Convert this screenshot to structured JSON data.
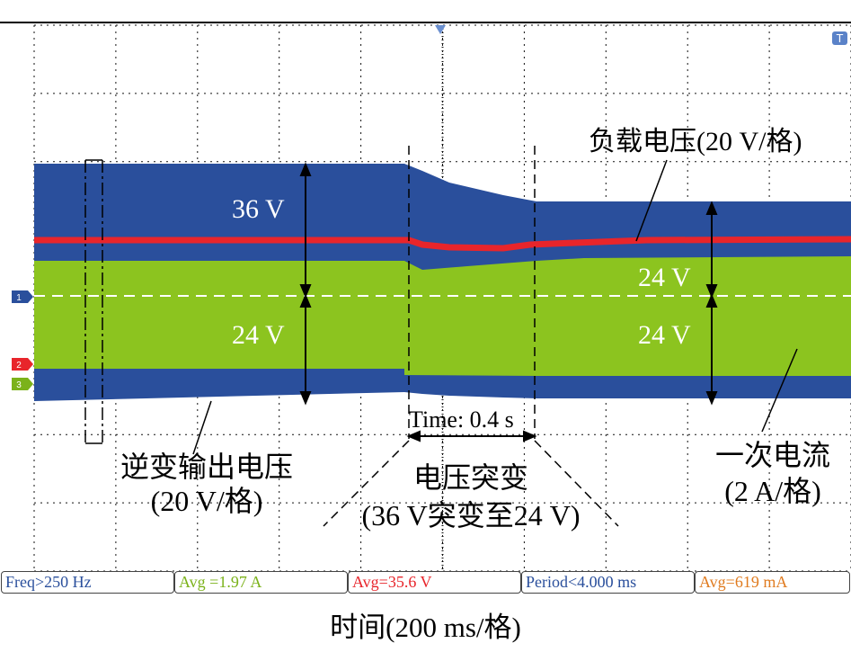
{
  "colors": {
    "blue": "#2a4f9c",
    "red": "#e8252b",
    "green": "#8cc41f",
    "ch4": "#e07b1f",
    "grid": "#9a9a9a",
    "divider_line": "#ffffff"
  },
  "scope": {
    "grid": true,
    "divisions_x": 10,
    "divisions_y": 8,
    "trigger_marker": "T",
    "channel_markers": [
      "1",
      "2",
      "3"
    ]
  },
  "annotations": {
    "load_voltage": "负载电压(20 V/格)",
    "v36": "36 V",
    "v24_left": "24 V",
    "v24_right_top": "24 V",
    "v24_right_bottom": "24 V",
    "time_label": "Time: 0.4 s",
    "inverter_line1": "逆变输出电压",
    "inverter_line2": "(20 V/格)",
    "step_line1": "电压突变",
    "step_line2": "(36 V突变至24 V)",
    "primary_line1": "一次电流",
    "primary_line2": "(2 A/格)"
  },
  "measurements": [
    {
      "text": "Freq>250 Hz",
      "color": "#2a4f9c"
    },
    {
      "text": "Avg =1.97 A",
      "color": "#7bb21a"
    },
    {
      "text": "Avg=35.6 V",
      "color": "#e8252b"
    },
    {
      "text": "Period<4.000 ms",
      "color": "#2a4f9c"
    },
    {
      "text": "Avg=619 mA",
      "color": "#e07b1f"
    }
  ],
  "x_axis_label": "时间(200 ms/格)"
}
